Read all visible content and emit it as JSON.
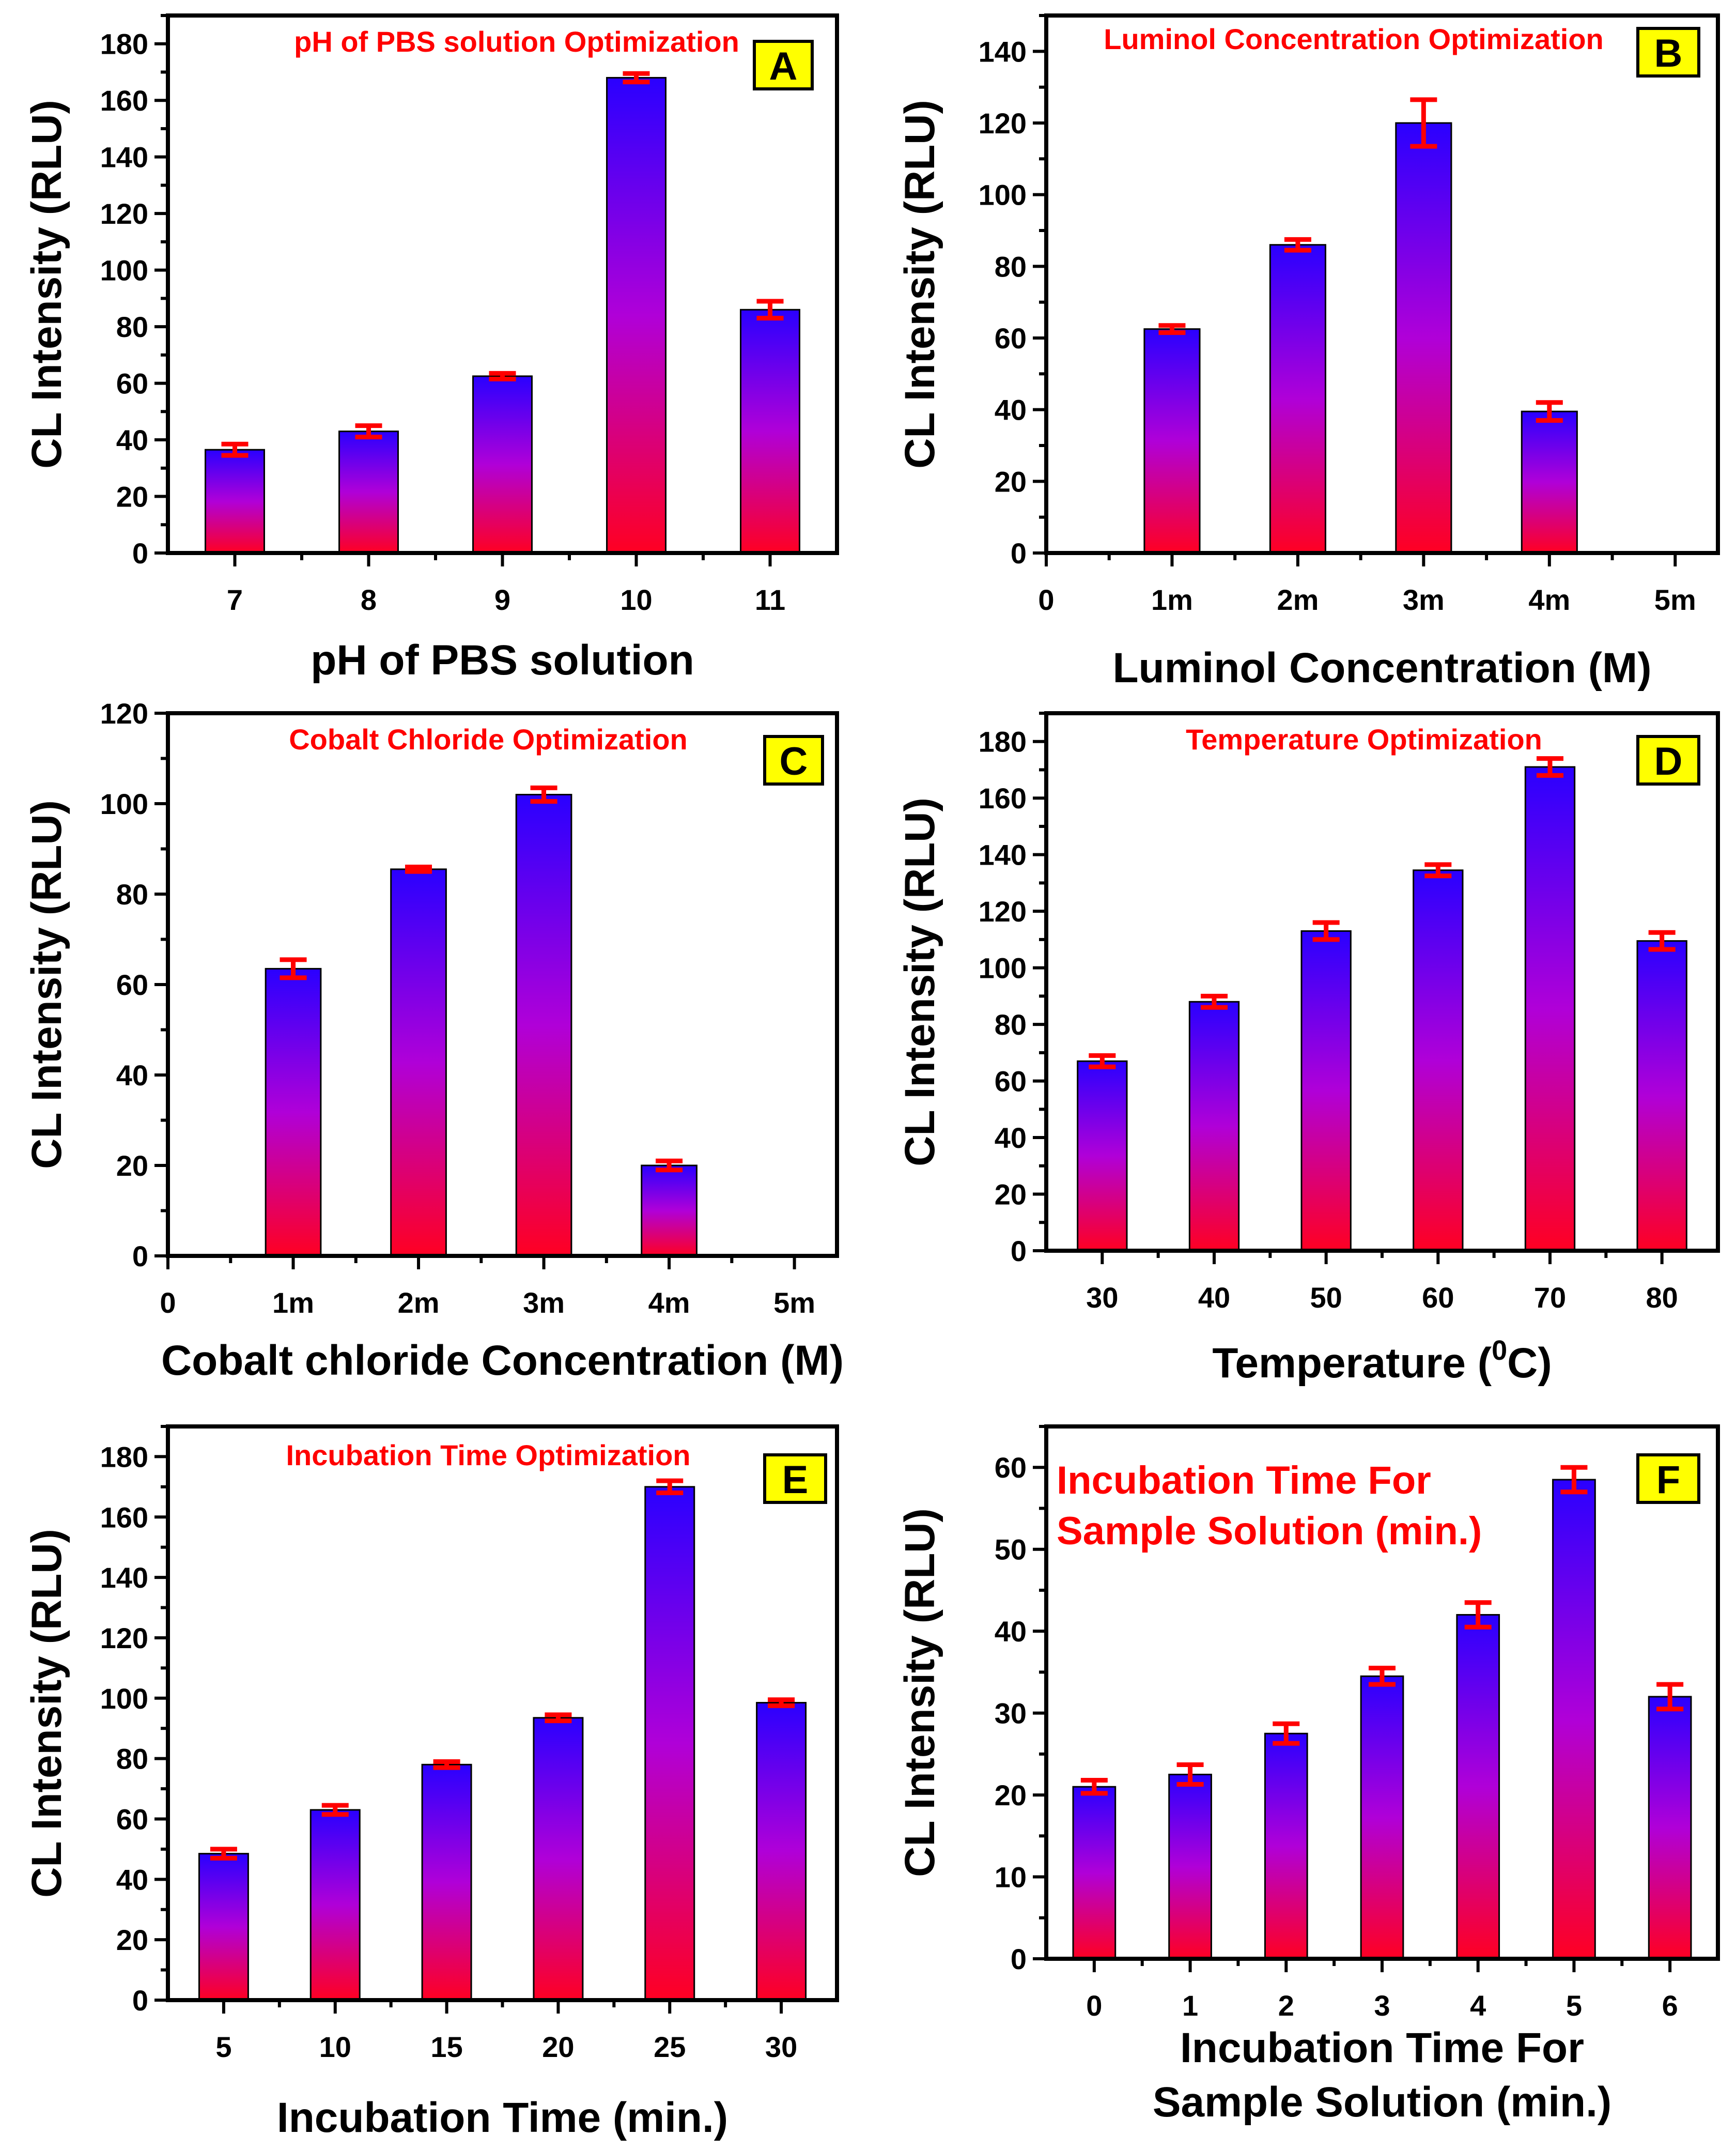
{
  "colors": {
    "bar_top": "#2a00ff",
    "bar_mid": "#b000d8",
    "bar_bottom": "#ff0022",
    "title_red": "#ff0000",
    "error_bar": "#ff0000",
    "panel_badge": "#ffff00",
    "axis": "#000000"
  },
  "chart_data": [
    {
      "panel": "A",
      "type": "bar",
      "title": "pH of PBS solution Optimization",
      "xlabel": "pH of PBS solution",
      "ylabel": "CL Intensity (RLU)",
      "categories": [
        "7",
        "8",
        "9",
        "10",
        "11"
      ],
      "values": [
        36.5,
        43,
        62.5,
        168,
        86
      ],
      "errors": [
        2,
        2,
        1,
        1.5,
        3
      ],
      "ylim": [
        0,
        190
      ],
      "yticks": [
        0,
        20,
        40,
        60,
        80,
        100,
        120,
        140,
        160,
        180
      ]
    },
    {
      "panel": "B",
      "type": "bar",
      "title": "Luminol Concentration Optimization",
      "xlabel": "Luminol Concentration (M)",
      "ylabel": "CL Intensity (RLU)",
      "categories": [
        "0",
        "1m",
        "2m",
        "3m",
        "4m",
        "5m"
      ],
      "values": [
        null,
        62.5,
        86,
        120,
        39.5,
        null
      ],
      "errors": [
        null,
        1,
        1.5,
        6.5,
        2.5,
        null
      ],
      "ylim": [
        0,
        150
      ],
      "yticks": [
        0,
        20,
        40,
        60,
        80,
        100,
        120,
        140
      ]
    },
    {
      "panel": "C",
      "type": "bar",
      "title": "Cobalt Chloride Optimization",
      "xlabel": "Cobalt chloride Concentration (M)",
      "ylabel": "CL Intensity (RLU)",
      "categories": [
        "0",
        "1m",
        "2m",
        "3m",
        "4m",
        "5m"
      ],
      "values": [
        null,
        63.5,
        85.5,
        102,
        20,
        null
      ],
      "errors": [
        null,
        2,
        0.5,
        1.5,
        1,
        null
      ],
      "ylim": [
        0,
        120
      ],
      "yticks": [
        0,
        20,
        40,
        60,
        80,
        100,
        120
      ]
    },
    {
      "panel": "D",
      "type": "bar",
      "title": "Temperature Optimization",
      "xlabel": "Temperature (",
      "xlabel_sup": "0",
      "xlabel_end": "C)",
      "ylabel": "CL Intensity (RLU)",
      "categories": [
        "30",
        "40",
        "50",
        "60",
        "70",
        "80"
      ],
      "values": [
        67,
        88,
        113,
        134.5,
        171,
        109.5
      ],
      "errors": [
        2,
        2,
        3,
        2,
        3,
        3
      ],
      "ylim": [
        0,
        190
      ],
      "yticks": [
        0,
        20,
        40,
        60,
        80,
        100,
        120,
        140,
        160,
        180
      ]
    },
    {
      "panel": "E",
      "type": "bar",
      "title": "Incubation Time Optimization",
      "xlabel": "Incubation Time (min.)",
      "ylabel": "CL Intensity (RLU)",
      "categories": [
        "5",
        "10",
        "15",
        "20",
        "25",
        "30"
      ],
      "values": [
        48.5,
        63,
        78,
        93.5,
        170,
        98.5
      ],
      "errors": [
        1.5,
        1.5,
        1,
        1,
        2,
        1
      ],
      "ylim": [
        0,
        190
      ],
      "yticks": [
        0,
        20,
        40,
        60,
        80,
        100,
        120,
        140,
        160,
        180
      ]
    },
    {
      "panel": "F",
      "type": "bar",
      "title": "Incubation Time For",
      "title_line2": "Sample Solution (min.)",
      "xlabel": "Incubation Time For",
      "xlabel_line2": "Sample Solution (min.)",
      "ylabel": "CL Intensity (RLU)",
      "categories": [
        "0",
        "1",
        "2",
        "3",
        "4",
        "5",
        "6"
      ],
      "values": [
        21,
        22.5,
        27.5,
        34.5,
        42,
        58.5,
        32
      ],
      "errors": [
        0.8,
        1.2,
        1.2,
        1,
        1.5,
        1.5,
        1.5
      ],
      "ylim": [
        0,
        65
      ],
      "yticks": [
        0,
        10,
        20,
        30,
        40,
        50,
        60
      ]
    }
  ]
}
